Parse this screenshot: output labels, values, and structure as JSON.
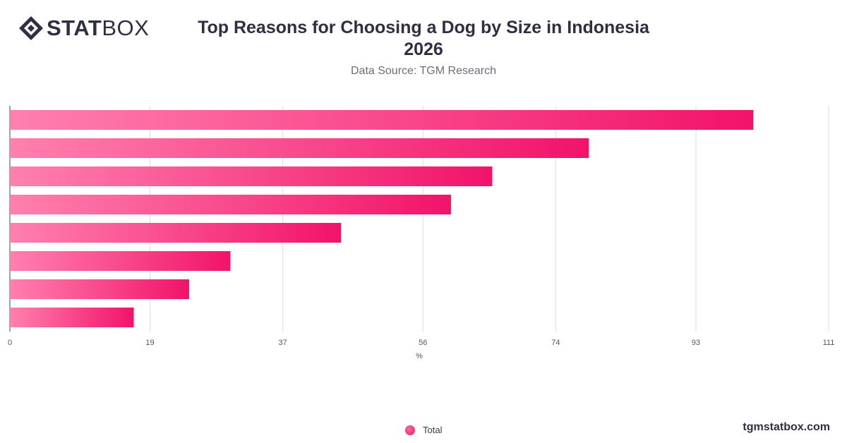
{
  "header": {
    "logo_bold": "STAT",
    "logo_light": "BOX",
    "logo_icon": "statbox-diamond-icon",
    "title_line1": "Top Reasons for Choosing a Dog by Size in Indonesia",
    "title_line2": "2026",
    "subtitle": "Data Source: TGM Research"
  },
  "legend": {
    "label": "Total"
  },
  "footer": {
    "url": "tgmstatbox.com"
  },
  "colors": {
    "bar_start": "#ff80ae",
    "bar_end": "#f2136a",
    "text": "#2f2f44"
  },
  "chart_data": {
    "type": "bar",
    "orientation": "horizontal",
    "title": "Top Reasons for Choosing a Dog by Size in Indonesia 2026",
    "subtitle": "Data Source: TGM Research",
    "xlabel": "%",
    "ylabel": "",
    "xlim": [
      0,
      111
    ],
    "xticks": [
      0,
      19,
      37,
      56,
      74,
      93,
      111
    ],
    "grid": true,
    "legend_position": "bottom-center",
    "categories": [
      "",
      "",
      "",
      "",
      "",
      "",
      "",
      ""
    ],
    "series": [
      {
        "name": "Total",
        "values": [
          100.8,
          78.5,
          65.4,
          59.8,
          44.9,
          29.9,
          24.3,
          16.8
        ]
      }
    ]
  }
}
